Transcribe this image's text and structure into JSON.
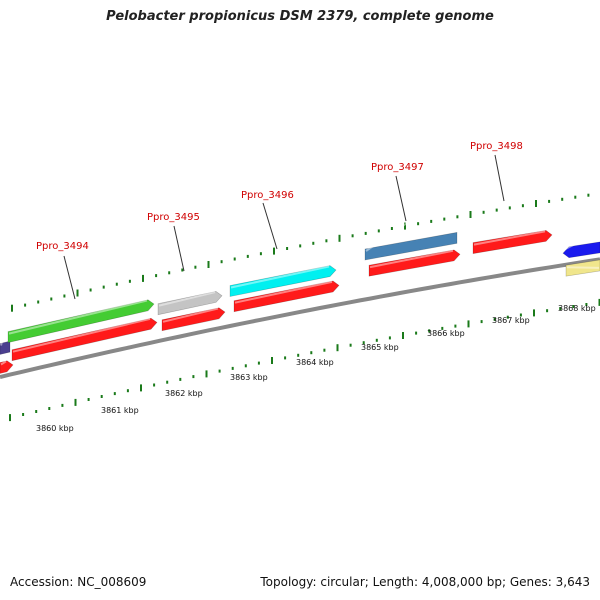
{
  "title": "Pelobacter propionicus DSM 2379, complete genome",
  "footer": {
    "accession": "Accession: NC_008609",
    "topology": "Topology: circular; Length: 4,008,000 bp; Genes: 3,643"
  },
  "gene_labels": [
    "Ppro_3494",
    "Ppro_3495",
    "Ppro_3496",
    "Ppro_3497",
    "Ppro_3498"
  ],
  "scale_labels": [
    "3860 kbp",
    "3861 kbp",
    "3862 kbp",
    "3863 kbp",
    "3864 kbp",
    "3865 kbp",
    "3866 kbp",
    "3867 kbp",
    "3868 kbp"
  ],
  "colors": {
    "backbone": "#888888",
    "tick": "#1a7a1a",
    "label": "#d00000",
    "cds_red": "#ff1a1a",
    "green": "#44cc33",
    "gray": "#c4c4c4",
    "cyan": "#00f0f0",
    "steelblue": "#4682b4",
    "blue": "#1a1aee",
    "khaki": "#f0e68c",
    "purple": "#4a3f8f"
  }
}
